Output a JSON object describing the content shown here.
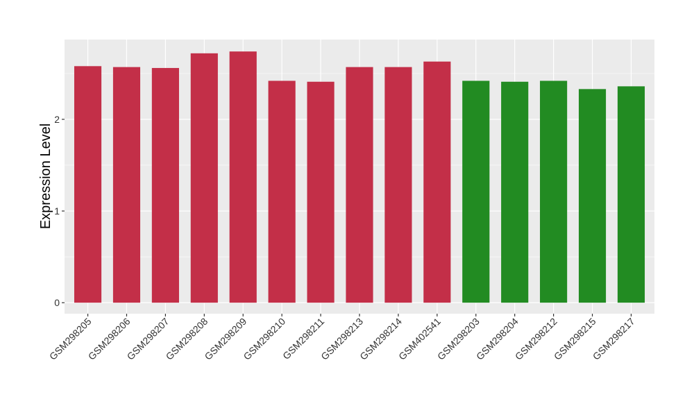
{
  "chart_data": {
    "type": "bar",
    "title": "",
    "xlabel": "",
    "ylabel": "Expression Level",
    "ylim": [
      -0.12,
      2.87
    ],
    "yticks": [
      0,
      1,
      2
    ],
    "grid": true,
    "legend": "none",
    "categories": [
      "GSM298205",
      "GSM298206",
      "GSM298207",
      "GSM298208",
      "GSM298209",
      "GSM298210",
      "GSM298211",
      "GSM298213",
      "GSM298214",
      "GSM402541",
      "GSM298203",
      "GSM298204",
      "GSM298212",
      "GSM298215",
      "GSM298217"
    ],
    "values": [
      2.58,
      2.57,
      2.56,
      2.72,
      2.74,
      2.42,
      2.41,
      2.57,
      2.57,
      2.63,
      2.42,
      2.41,
      2.42,
      2.33,
      2.36
    ],
    "bar_colors": [
      "#C32F48",
      "#C32F48",
      "#C32F48",
      "#C32F48",
      "#C32F48",
      "#C32F48",
      "#C32F48",
      "#C32F48",
      "#C32F48",
      "#C32F48",
      "#228B22",
      "#228B22",
      "#228B22",
      "#228B22",
      "#228B22"
    ],
    "panel_background": "#EBEBEB",
    "gridline_color": "#FFFFFF"
  }
}
